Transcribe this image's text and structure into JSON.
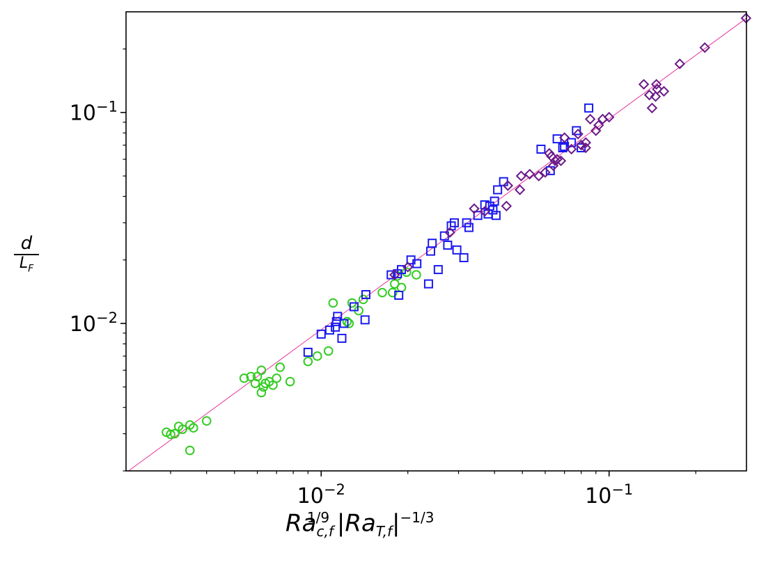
{
  "chart_data": {
    "type": "scatter",
    "xscale": "log",
    "yscale": "log",
    "xlim": [
      0.0021,
      0.3
    ],
    "ylim": [
      0.002,
      0.3
    ],
    "xlabel": "Ra_c,f^1/9 |Ra_T,f|^-1/3",
    "ylabel": "d / L_F",
    "xticks": [
      {
        "value": 0.01,
        "base": "10",
        "exp": "−2"
      },
      {
        "value": 0.1,
        "base": "10",
        "exp": "−1"
      }
    ],
    "yticks": [
      {
        "value": 0.01,
        "base": "10",
        "exp": "−2"
      },
      {
        "value": 0.1,
        "base": "10",
        "exp": "−1"
      }
    ],
    "grid": false,
    "legend": false,
    "fit_line": {
      "x": [
        0.0021,
        0.3
      ],
      "y": [
        0.00196,
        0.28
      ],
      "color": "#e8349a"
    },
    "series": [
      {
        "marker": "circle",
        "color": "#33cc22",
        "points": [
          [
            0.0029,
            0.00305
          ],
          [
            0.003,
            0.00298
          ],
          [
            0.0031,
            0.003
          ],
          [
            0.0032,
            0.00325
          ],
          [
            0.0033,
            0.00315
          ],
          [
            0.0035,
            0.0033
          ],
          [
            0.0036,
            0.0032
          ],
          [
            0.0035,
            0.0025
          ],
          [
            0.004,
            0.00345
          ],
          [
            0.0054,
            0.0055
          ],
          [
            0.0057,
            0.0056
          ],
          [
            0.0059,
            0.0052
          ],
          [
            0.006,
            0.0056
          ],
          [
            0.0062,
            0.006
          ],
          [
            0.0062,
            0.0047
          ],
          [
            0.0063,
            0.005
          ],
          [
            0.0064,
            0.0052
          ],
          [
            0.0066,
            0.0053
          ],
          [
            0.0068,
            0.0051
          ],
          [
            0.007,
            0.0055
          ],
          [
            0.0072,
            0.0062
          ],
          [
            0.0078,
            0.0053
          ],
          [
            0.009,
            0.0066
          ],
          [
            0.0097,
            0.007
          ],
          [
            0.0106,
            0.0074
          ],
          [
            0.011,
            0.0125
          ],
          [
            0.0123,
            0.0102
          ],
          [
            0.0125,
            0.01
          ],
          [
            0.0128,
            0.0125
          ],
          [
            0.0135,
            0.0115
          ],
          [
            0.014,
            0.013
          ],
          [
            0.0163,
            0.014
          ],
          [
            0.0177,
            0.014
          ],
          [
            0.018,
            0.0154
          ],
          [
            0.0184,
            0.0168
          ],
          [
            0.019,
            0.0148
          ],
          [
            0.0198,
            0.0175
          ],
          [
            0.0214,
            0.017
          ]
        ]
      },
      {
        "marker": "square",
        "color": "#1a1aee",
        "points": [
          [
            0.009,
            0.0073
          ],
          [
            0.01,
            0.0089
          ],
          [
            0.0107,
            0.0093
          ],
          [
            0.0112,
            0.0096
          ],
          [
            0.0113,
            0.0102
          ],
          [
            0.0114,
            0.0108
          ],
          [
            0.0118,
            0.0085
          ],
          [
            0.012,
            0.01
          ],
          [
            0.013,
            0.012
          ],
          [
            0.0142,
            0.0104
          ],
          [
            0.0143,
            0.0137
          ],
          [
            0.0175,
            0.017
          ],
          [
            0.0184,
            0.0172
          ],
          [
            0.0186,
            0.0136
          ],
          [
            0.019,
            0.018
          ],
          [
            0.0205,
            0.02
          ],
          [
            0.0215,
            0.0192
          ],
          [
            0.0236,
            0.0154
          ],
          [
            0.024,
            0.022
          ],
          [
            0.0243,
            0.024
          ],
          [
            0.0255,
            0.018
          ],
          [
            0.0268,
            0.026
          ],
          [
            0.0275,
            0.0235
          ],
          [
            0.0283,
            0.029
          ],
          [
            0.029,
            0.03
          ],
          [
            0.0296,
            0.0223
          ],
          [
            0.0313,
            0.0205
          ],
          [
            0.032,
            0.03
          ],
          [
            0.0326,
            0.0285
          ],
          [
            0.035,
            0.0325
          ],
          [
            0.037,
            0.0365
          ],
          [
            0.038,
            0.033
          ],
          [
            0.0385,
            0.036
          ],
          [
            0.0395,
            0.0345
          ],
          [
            0.04,
            0.038
          ],
          [
            0.0405,
            0.0325
          ],
          [
            0.041,
            0.043
          ],
          [
            0.043,
            0.047
          ],
          [
            0.058,
            0.067
          ],
          [
            0.0625,
            0.053
          ],
          [
            0.066,
            0.075
          ],
          [
            0.069,
            0.068
          ],
          [
            0.07,
            0.069
          ],
          [
            0.074,
            0.072
          ],
          [
            0.077,
            0.082
          ],
          [
            0.08,
            0.068
          ],
          [
            0.085,
            0.105
          ]
        ]
      },
      {
        "marker": "diamond",
        "color": "#6a1a88",
        "points": [
          [
            0.018,
            0.017
          ],
          [
            0.02,
            0.0185
          ],
          [
            0.028,
            0.027
          ],
          [
            0.034,
            0.035
          ],
          [
            0.037,
            0.034
          ],
          [
            0.044,
            0.036
          ],
          [
            0.0445,
            0.045
          ],
          [
            0.049,
            0.043
          ],
          [
            0.0495,
            0.05
          ],
          [
            0.053,
            0.051
          ],
          [
            0.057,
            0.05
          ],
          [
            0.06,
            0.052
          ],
          [
            0.062,
            0.064
          ],
          [
            0.063,
            0.062
          ],
          [
            0.064,
            0.056
          ],
          [
            0.065,
            0.059
          ],
          [
            0.066,
            0.06
          ],
          [
            0.068,
            0.059
          ],
          [
            0.07,
            0.076
          ],
          [
            0.074,
            0.067
          ],
          [
            0.078,
            0.079
          ],
          [
            0.08,
            0.07
          ],
          [
            0.083,
            0.072
          ],
          [
            0.083,
            0.068
          ],
          [
            0.086,
            0.093
          ],
          [
            0.09,
            0.082
          ],
          [
            0.092,
            0.087
          ],
          [
            0.095,
            0.093
          ],
          [
            0.1,
            0.095
          ],
          [
            0.132,
            0.136
          ],
          [
            0.138,
            0.121
          ],
          [
            0.141,
            0.105
          ],
          [
            0.145,
            0.119
          ],
          [
            0.146,
            0.136
          ],
          [
            0.147,
            0.129
          ],
          [
            0.155,
            0.126
          ],
          [
            0.176,
            0.17
          ],
          [
            0.215,
            0.203
          ],
          [
            0.299,
            0.28
          ]
        ]
      }
    ]
  }
}
